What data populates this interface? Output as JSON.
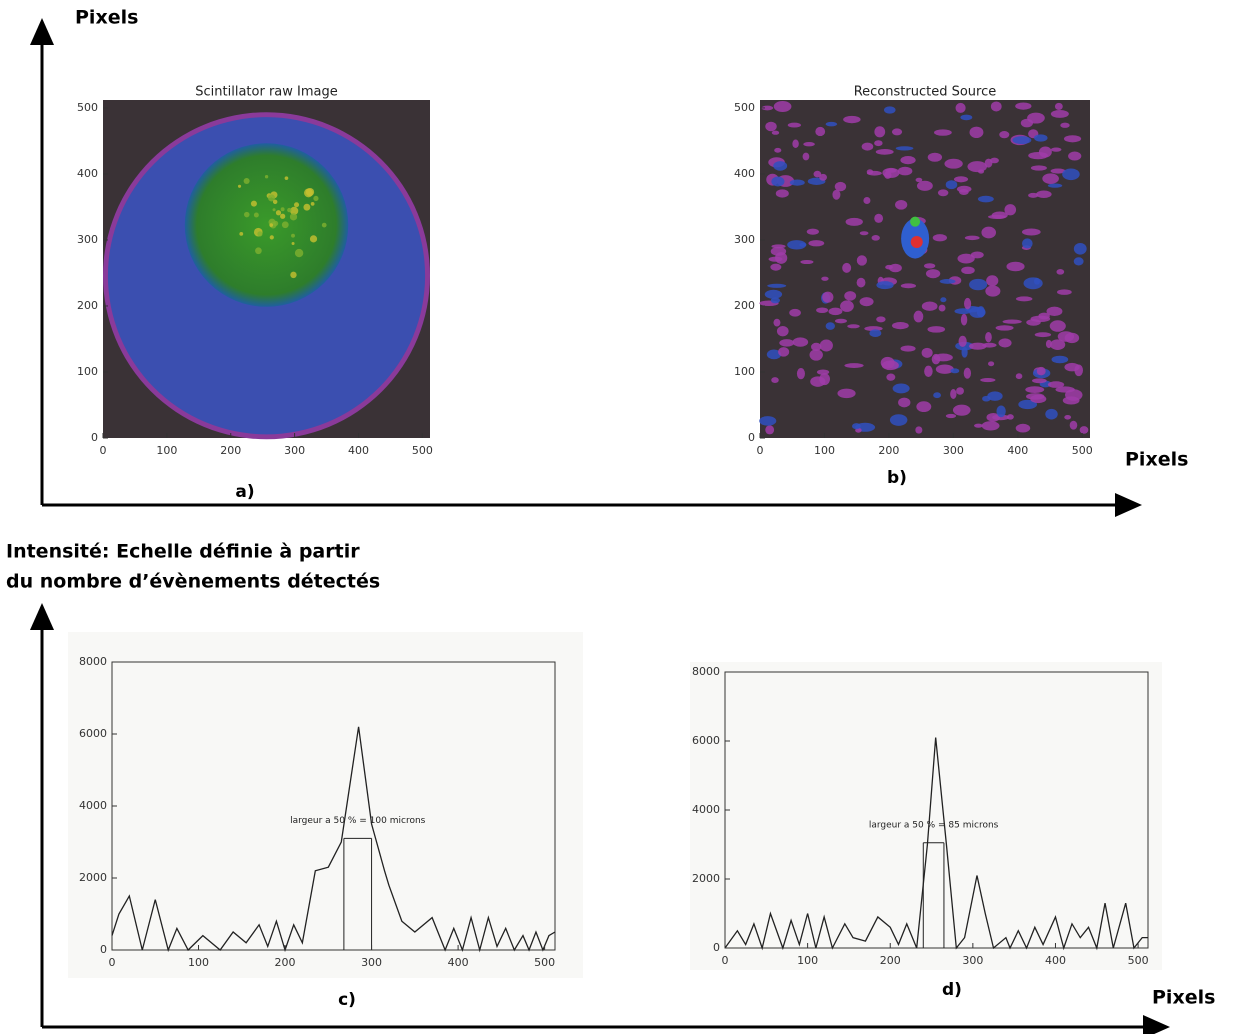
{
  "figure": {
    "top_y_label": "Pixels",
    "top_x_label": "Pixels",
    "bottom_y_label": [
      "Intensité: Echelle définie à partir",
      "du nombre d’évènements détectés"
    ],
    "bottom_x_label": "Pixels"
  },
  "chart_data": [
    {
      "type": "image",
      "title": "Scintillator raw Image",
      "label": "a)",
      "xlim": [
        0,
        512
      ],
      "ylim": [
        0,
        512
      ],
      "xticks": [
        0,
        100,
        200,
        300,
        400,
        500
      ],
      "yticks": [
        0,
        100,
        200,
        300,
        400,
        500
      ]
    },
    {
      "type": "image",
      "title": "Reconstructed Source",
      "label": "b)",
      "xlim": [
        0,
        512
      ],
      "ylim": [
        0,
        512
      ],
      "xticks": [
        0,
        100,
        200,
        300,
        400,
        500
      ],
      "yticks": [
        0,
        100,
        200,
        300,
        400,
        500
      ]
    },
    {
      "type": "line",
      "label": "c)",
      "annotation": "largeur a 50 % = 100 microns",
      "fwhm_x": [
        268,
        300
      ],
      "fwhm_y": 3100,
      "xlim": [
        0,
        512
      ],
      "ylim": [
        0,
        8000
      ],
      "xticks": [
        0,
        100,
        200,
        300,
        400,
        500
      ],
      "yticks": [
        0,
        2000,
        4000,
        6000,
        8000
      ],
      "color": "#222",
      "x": [
        0,
        8,
        20,
        35,
        50,
        65,
        75,
        88,
        105,
        125,
        140,
        155,
        170,
        180,
        190,
        200,
        210,
        220,
        235,
        250,
        265,
        285,
        300,
        315,
        320,
        335,
        350,
        370,
        385,
        395,
        405,
        415,
        425,
        435,
        445,
        455,
        465,
        475,
        482,
        490,
        498,
        505,
        512
      ],
      "values": [
        400,
        1000,
        1500,
        0,
        1400,
        0,
        600,
        0,
        400,
        0,
        500,
        200,
        700,
        100,
        800,
        0,
        700,
        200,
        2200,
        2300,
        3000,
        6200,
        3500,
        2200,
        1800,
        800,
        500,
        900,
        0,
        600,
        0,
        900,
        0,
        900,
        100,
        600,
        0,
        400,
        0,
        500,
        0,
        400,
        500
      ]
    },
    {
      "type": "line",
      "label": "d)",
      "annotation": "largeur a 50 % = 85 microns",
      "fwhm_x": [
        240,
        265
      ],
      "fwhm_y": 3050,
      "xlim": [
        0,
        512
      ],
      "ylim": [
        0,
        8000
      ],
      "xticks": [
        0,
        100,
        200,
        300,
        400,
        500
      ],
      "yticks": [
        0,
        2000,
        4000,
        6000,
        8000
      ],
      "color": "#222",
      "x": [
        0,
        15,
        25,
        35,
        45,
        55,
        70,
        80,
        90,
        100,
        110,
        120,
        130,
        145,
        155,
        170,
        185,
        200,
        210,
        220,
        232,
        245,
        255,
        268,
        280,
        290,
        305,
        315,
        325,
        340,
        345,
        355,
        365,
        375,
        385,
        400,
        410,
        420,
        430,
        440,
        450,
        460,
        470,
        485,
        495,
        505,
        512
      ],
      "values": [
        0,
        500,
        100,
        700,
        0,
        1000,
        0,
        800,
        100,
        1000,
        0,
        900,
        0,
        700,
        300,
        200,
        900,
        600,
        100,
        700,
        0,
        3000,
        6100,
        3000,
        0,
        300,
        2100,
        1000,
        0,
        300,
        0,
        500,
        0,
        600,
        100,
        900,
        0,
        700,
        300,
        600,
        0,
        1300,
        0,
        1300,
        0,
        300,
        300
      ]
    }
  ]
}
